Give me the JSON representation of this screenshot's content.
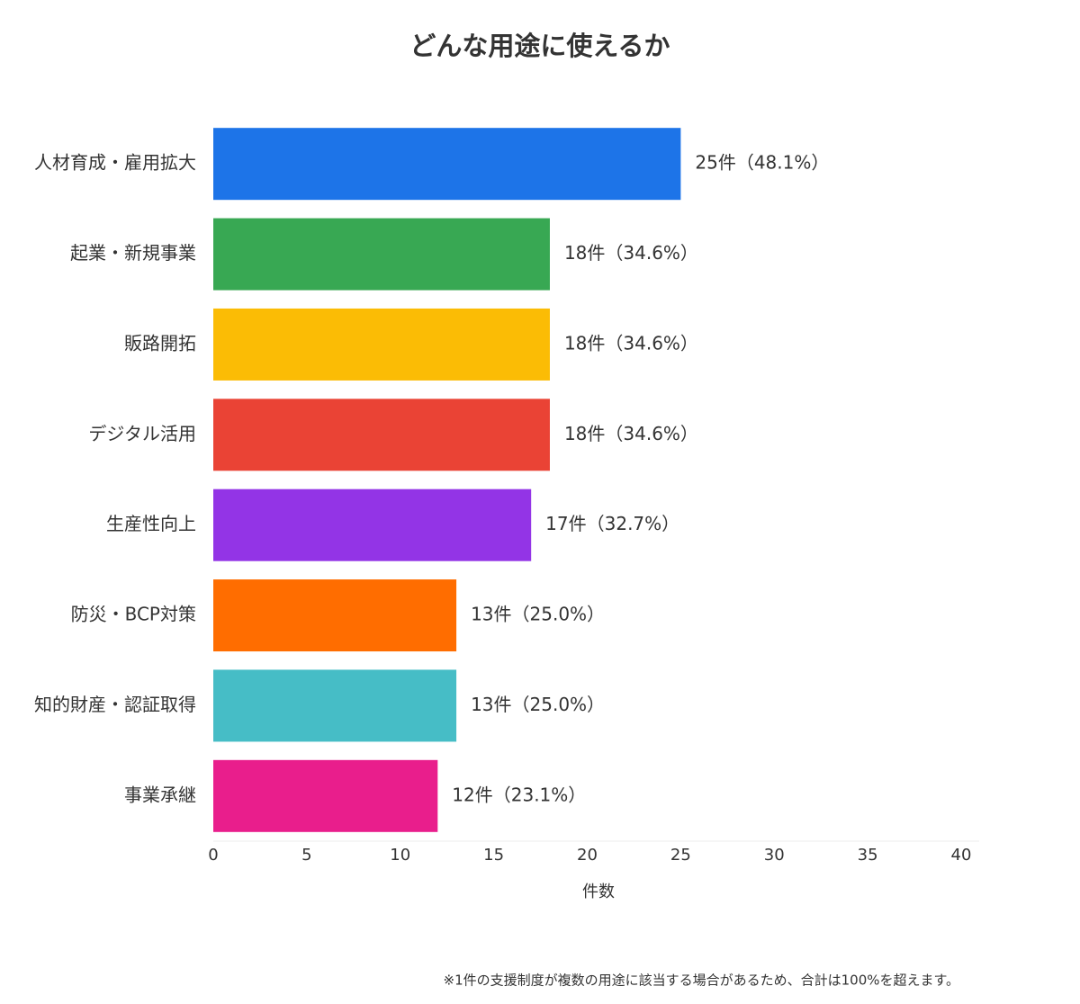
{
  "chart_data": {
    "type": "barh",
    "title": "どんな用途に使えるか",
    "categories": [
      "人材育成・雇用拡大",
      "起業・新規事業",
      "販路開拓",
      "デジタル活用",
      "生産性向上",
      "防災・BCP対策",
      "知的財産・認証取得",
      "事業承継"
    ],
    "values": [
      25,
      18,
      18,
      18,
      17,
      13,
      13,
      12
    ],
    "value_labels": [
      "25件（48.1%）",
      "18件（34.6%）",
      "18件（34.6%）",
      "18件（34.6%）",
      "17件（32.7%）",
      "13件（25.0%）",
      "13件（25.0%）",
      "12件（23.1%）"
    ],
    "colors": [
      "#1d74e8",
      "#38a853",
      "#fbbc05",
      "#ea4335",
      "#9334e6",
      "#ff6d00",
      "#46bdc6",
      "#e91e8c"
    ],
    "xlabel": "件数",
    "xlim": [
      0,
      40
    ],
    "xticks": [
      0,
      5,
      10,
      15,
      20,
      25,
      30,
      35,
      40
    ],
    "grid": false,
    "footnote": "※1件の支援制度が複数の用途に該当する場合があるため、合計は100%を超えます。"
  }
}
